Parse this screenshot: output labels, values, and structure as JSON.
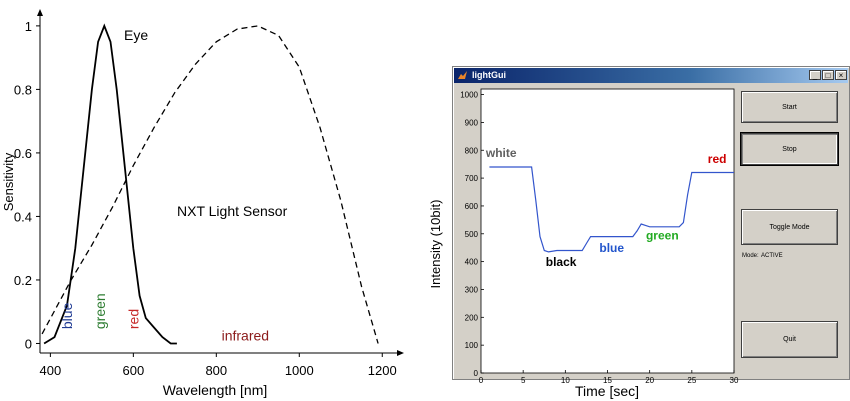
{
  "chart_data": [
    {
      "type": "line",
      "xlabel": "Wavelength [nm]",
      "ylabel": "Sensitivity",
      "xlim": [
        375,
        1250
      ],
      "ylim": [
        -0.03,
        1.05
      ],
      "xticks": [
        400,
        600,
        800,
        1000,
        1200
      ],
      "yticks": [
        0,
        0.2,
        0.4,
        0.6,
        0.8,
        1
      ],
      "yticklabels": [
        "0",
        "0.2",
        "0.4",
        "0.6",
        "0.8",
        "1"
      ],
      "series": [
        {
          "name": "Eye",
          "style": "solid",
          "x": [
            385,
            410,
            440,
            460,
            480,
            500,
            515,
            530,
            545,
            560,
            580,
            600,
            615,
            630,
            650,
            670,
            690,
            705
          ],
          "y": [
            0.0,
            0.02,
            0.12,
            0.3,
            0.55,
            0.8,
            0.95,
            1.0,
            0.95,
            0.8,
            0.55,
            0.3,
            0.15,
            0.08,
            0.05,
            0.02,
            0.0,
            0.0
          ]
        },
        {
          "name": "NXT Light Sensor",
          "style": "dashed",
          "x": [
            380,
            450,
            500,
            550,
            600,
            650,
            700,
            750,
            800,
            850,
            900,
            950,
            1000,
            1050,
            1100,
            1150,
            1190
          ],
          "y": [
            0.03,
            0.2,
            0.31,
            0.43,
            0.56,
            0.68,
            0.79,
            0.88,
            0.95,
            0.99,
            1.0,
            0.97,
            0.87,
            0.68,
            0.45,
            0.18,
            0.0
          ]
        }
      ],
      "annotations": [
        {
          "text": "blue",
          "x": 440,
          "y": 0.02,
          "color": "#1f3a93",
          "rotate": true
        },
        {
          "text": "green",
          "x": 520,
          "y": 0.02,
          "color": "#2e7d32",
          "rotate": true
        },
        {
          "text": "red",
          "x": 600,
          "y": 0.02,
          "color": "#c62828",
          "rotate": true
        },
        {
          "text": "infrared",
          "x": 870,
          "y": 0.01,
          "color": "#8b1a1a",
          "rotate": false
        }
      ]
    },
    {
      "type": "line",
      "xlabel": "Time [sec]",
      "ylabel": "Intensity (10bit)",
      "xlim": [
        0,
        30
      ],
      "ylim": [
        0,
        1020
      ],
      "xticks": [
        0,
        5,
        10,
        15,
        20,
        25,
        30
      ],
      "yticks": [
        0,
        100,
        200,
        300,
        400,
        500,
        600,
        700,
        800,
        900,
        1000
      ],
      "color": "#3355cc",
      "series": [
        {
          "x": [
            1,
            6,
            6.5,
            7,
            7.5,
            8,
            9,
            11,
            12,
            12.5,
            13,
            18,
            18.5,
            19,
            19.5,
            20,
            23,
            23.5,
            24,
            24.5,
            25,
            30
          ],
          "y": [
            740,
            740,
            620,
            490,
            440,
            435,
            440,
            440,
            440,
            465,
            490,
            490,
            510,
            535,
            530,
            525,
            525,
            525,
            540,
            640,
            720,
            720
          ]
        }
      ],
      "annotations": [
        {
          "text": "white",
          "x": 2.4,
          "y": 775,
          "color": "#606060"
        },
        {
          "text": "black",
          "x": 9.5,
          "y": 385,
          "color": "#000000"
        },
        {
          "text": "blue",
          "x": 15.5,
          "y": 435,
          "color": "#2255cc"
        },
        {
          "text": "green",
          "x": 21.5,
          "y": 480,
          "color": "#22aa22"
        },
        {
          "text": "red",
          "x": 28,
          "y": 755,
          "color": "#cc0000"
        }
      ]
    }
  ],
  "gui": {
    "title": "lightGui",
    "window_buttons": {
      "minimize": "_",
      "maximize": "□",
      "close": "×"
    },
    "buttons": {
      "start": "Start",
      "stop": "Stop",
      "toggle": "Toggle Mode",
      "quit": "Quit"
    },
    "mode_label": "Mode:",
    "mode_value": "ACTIVE"
  },
  "left_labels": {
    "eye": "Eye",
    "sensor": "NXT Light Sensor"
  }
}
